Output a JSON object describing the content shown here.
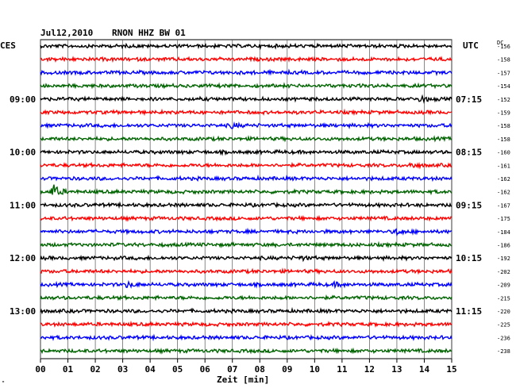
{
  "header": {
    "date": "Jul12,2010",
    "station": "RNON HHZ BW 01",
    "left_zone": "CES",
    "right_zone": "UTC",
    "dc_label": "DC"
  },
  "footer": {
    "xlabel": "Zeit [min]",
    "corner_mark": "\""
  },
  "chart_data": {
    "type": "seismogram",
    "traces_per_hour": 4,
    "trace_colors": [
      "#000000",
      "#ff0000",
      "#0000ff",
      "#006400"
    ],
    "x_range_min": [
      0,
      15
    ],
    "x_ticks": [
      "00",
      "01",
      "02",
      "03",
      "04",
      "05",
      "06",
      "07",
      "08",
      "09",
      "10",
      "11",
      "12",
      "13",
      "14",
      "15"
    ],
    "left_time_labels": [
      {
        "trace": 4,
        "label": "09:00"
      },
      {
        "trace": 8,
        "label": "10:00"
      },
      {
        "trace": 12,
        "label": "11:00"
      },
      {
        "trace": 16,
        "label": "12:00"
      },
      {
        "trace": 20,
        "label": "13:00"
      }
    ],
    "right_time_labels": [
      {
        "trace": 4,
        "label": "07:15"
      },
      {
        "trace": 8,
        "label": "08:15"
      },
      {
        "trace": 12,
        "label": "09:15"
      },
      {
        "trace": 16,
        "label": "10:15"
      },
      {
        "trace": 20,
        "label": "11:15"
      }
    ],
    "dc_offsets": [
      "-156",
      "-158",
      "-157",
      "-154",
      "-152",
      "-159",
      "-158",
      "-158",
      "-160",
      "-161",
      "-162",
      "-162",
      "-167",
      "-175",
      "-184",
      "-186",
      "-192",
      "-202",
      "-209",
      "-215",
      "-220",
      "-225",
      "-236",
      "-238"
    ],
    "events": [
      {
        "trace": 11,
        "minute": 0.45,
        "amp": 9
      },
      {
        "trace": 4,
        "minute": 13.9,
        "amp": 3.5
      },
      {
        "trace": 9,
        "minute": 13.5,
        "amp": 3
      },
      {
        "trace": 14,
        "minute": 13.0,
        "amp": 3.5
      },
      {
        "trace": 18,
        "minute": 3.2,
        "amp": 3
      },
      {
        "trace": 6,
        "minute": 7.0,
        "amp": 2.5
      },
      {
        "trace": 18,
        "minute": 10.8,
        "amp": 2
      },
      {
        "trace": 16,
        "minute": 9.5,
        "amp": 2
      }
    ]
  }
}
